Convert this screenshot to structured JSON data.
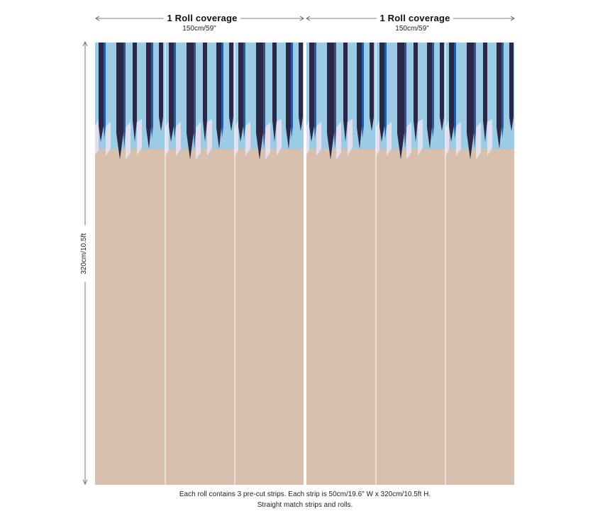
{
  "coverage": [
    {
      "label": "1 Roll coverage",
      "size": "150cm/59\""
    },
    {
      "label": "1 Roll coverage",
      "size": "150cm/59\""
    }
  ],
  "height_label": "320cm/10.5ft",
  "caption": {
    "line1": "Each roll contains 3 pre-cut strips.  Each strip is 50cm/19.6\" W x 320cm/10.5ft H.",
    "line2": "Straight match strips and rolls."
  },
  "colors": {
    "sky": "#9ccbe6",
    "navy": "#2a2747",
    "blue": "#1f5fa8",
    "lavender": "#e9e2f0",
    "sand": "#d8c0ae",
    "line": "#555555"
  }
}
